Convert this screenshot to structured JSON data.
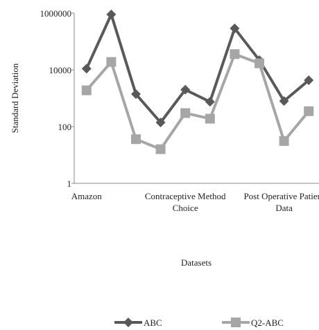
{
  "chart_data": {
    "type": "line",
    "x_label": "Datasets",
    "y_label": "Standard Deviation",
    "categories": [
      "Amazon",
      null,
      null,
      null,
      "Contraceptive Method Choice",
      null,
      null,
      null,
      "Post Operative Patient Data",
      null
    ],
    "series": [
      {
        "name": "ABC",
        "color": "#595959",
        "marker": "diamond",
        "values": [
          11000,
          900000,
          1400,
          140,
          2000,
          750,
          290000,
          22000,
          800,
          4300
        ]
      },
      {
        "name": "Q2-ABC",
        "color": "#a6a6a6",
        "marker": "square",
        "values": [
          1900,
          19000,
          36,
          16,
          300,
          190,
          36000,
          17000,
          31,
          350
        ]
      }
    ],
    "log_y": true,
    "ylim": [
      1,
      1000000
    ],
    "yticks": [
      1,
      100,
      10000,
      1000000
    ],
    "grid": false,
    "legend": "bottom"
  }
}
